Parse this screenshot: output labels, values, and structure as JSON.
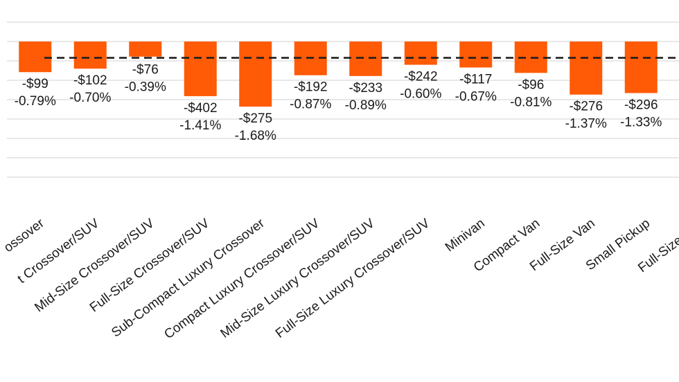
{
  "chart_data": {
    "type": "bar",
    "title": "",
    "xlabel": "",
    "ylabel": "",
    "legend": "none",
    "grid": true,
    "colors": {
      "bar": "#ff5a06",
      "average_line": "#1f1f1f",
      "grid": "#d9d9d9"
    },
    "categories": [
      "ossover",
      "t Crossover/SUV",
      "Mid-Size Crossover/SUV",
      "Full-Size Crossover/SUV",
      "Sub-Compact Luxury Crossover",
      "Compact Luxury Crossover/SUV",
      "Mid-Size Luxury Crossover/SUV",
      "Full-Size Luxury Crossover/SUV",
      "Minivan",
      "Compact Van",
      "Full-Size Van",
      "Small Pickup",
      "Full-Size Pick"
    ],
    "values": [
      -0.79,
      -0.7,
      -0.39,
      -1.41,
      -1.68,
      -0.87,
      -0.89,
      -0.6,
      -0.67,
      -0.81,
      -1.37,
      -1.33,
      null
    ],
    "ylim": [
      -3.75,
      0.5
    ],
    "average_line_value": -0.42,
    "dollar_labels": [
      "-$99",
      "-$102",
      "-$76",
      "-$402",
      "-$275",
      "-$192",
      "-$233",
      "-$242",
      "-$117",
      "-$96",
      "-$276",
      "-$296",
      "-"
    ],
    "percent_labels": [
      "-0.79%",
      "-0.70%",
      "-0.39%",
      "-1.41%",
      "-1.68%",
      "-0.87%",
      "-0.89%",
      "-0.60%",
      "-0.67%",
      "-0.81%",
      "-1.37%",
      "-1.33%",
      ""
    ]
  }
}
